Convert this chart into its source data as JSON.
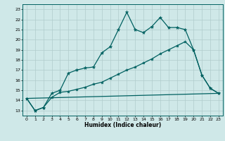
{
  "title": "",
  "xlabel": "Humidex (Indice chaleur)",
  "ylabel": "",
  "bg_color": "#cfe8e8",
  "grid_color": "#b0cccc",
  "line_color": "#006060",
  "xlim": [
    -0.5,
    23.5
  ],
  "ylim": [
    12.5,
    23.5
  ],
  "xticks": [
    0,
    1,
    2,
    3,
    4,
    5,
    6,
    7,
    8,
    9,
    10,
    11,
    12,
    13,
    14,
    15,
    16,
    17,
    18,
    19,
    20,
    21,
    22,
    23
  ],
  "yticks": [
    13,
    14,
    15,
    16,
    17,
    18,
    19,
    20,
    21,
    22,
    23
  ],
  "line1_x": [
    0,
    1,
    2,
    3,
    4,
    5,
    6,
    7,
    8,
    9,
    10,
    11,
    12,
    13,
    14,
    15,
    16,
    17,
    18,
    19,
    20,
    21,
    22,
    23
  ],
  "line1_y": [
    14.2,
    13.0,
    13.3,
    14.7,
    15.0,
    16.7,
    17.0,
    17.2,
    17.3,
    18.7,
    19.3,
    21.0,
    22.7,
    21.0,
    20.7,
    21.3,
    22.2,
    21.2,
    21.2,
    21.0,
    19.0,
    16.5,
    15.2,
    14.7
  ],
  "line2_x": [
    0,
    1,
    2,
    3,
    4,
    5,
    6,
    7,
    8,
    9,
    10,
    11,
    12,
    13,
    14,
    15,
    16,
    17,
    18,
    19,
    20,
    21,
    22,
    23
  ],
  "line2_y": [
    14.2,
    13.0,
    13.3,
    14.3,
    14.8,
    14.9,
    15.1,
    15.3,
    15.6,
    15.8,
    16.2,
    16.6,
    17.0,
    17.3,
    17.7,
    18.1,
    18.6,
    19.0,
    19.4,
    19.8,
    19.0,
    16.5,
    15.2,
    14.7
  ],
  "line3_x": [
    0,
    23
  ],
  "line3_y": [
    14.2,
    14.7
  ]
}
